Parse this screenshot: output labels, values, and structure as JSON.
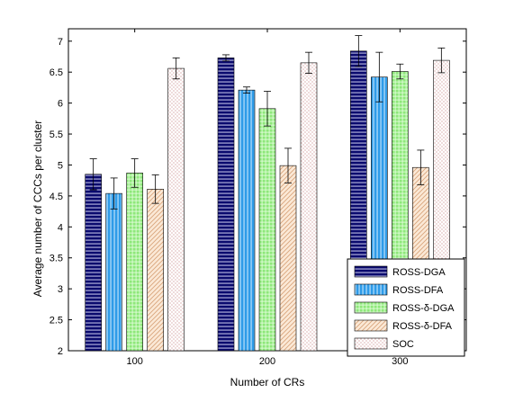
{
  "chart_data": {
    "type": "bar",
    "xlabel": "Number of CRs",
    "ylabel": "Average number of CCCs per cluster",
    "categories": [
      "100",
      "200",
      "300"
    ],
    "ylim": [
      2,
      7.2
    ],
    "yticks": [
      "2",
      "2.5",
      "3",
      "3.5",
      "4",
      "4.5",
      "5",
      "5.5",
      "6",
      "6.5",
      "7"
    ],
    "grid": false,
    "legend_position": "bottom-right",
    "series": [
      {
        "name": "ROSS-DGA",
        "values": [
          4.85,
          6.73,
          6.84
        ],
        "errors": [
          0.25,
          0.05,
          0.25
        ],
        "color": "#0a0a6e",
        "pattern": "hstripe"
      },
      {
        "name": "ROSS-DFA",
        "values": [
          4.54,
          6.21,
          6.42
        ],
        "errors": [
          0.25,
          0.05,
          0.4
        ],
        "color": "#2e9be8",
        "pattern": "vstripe"
      },
      {
        "name": "ROSS-δ-DGA",
        "values": [
          4.87,
          5.91,
          6.51
        ],
        "errors": [
          0.23,
          0.28,
          0.12
        ],
        "color": "#8ee87a",
        "pattern": "grid"
      },
      {
        "name": "ROSS-δ-DFA",
        "values": [
          4.61,
          4.99,
          4.96
        ],
        "errors": [
          0.23,
          0.28,
          0.28
        ],
        "color": "#f2cda8",
        "pattern": "diag"
      },
      {
        "name": "SOC",
        "values": [
          6.56,
          6.65,
          6.69
        ],
        "errors": [
          0.17,
          0.17,
          0.2
        ],
        "color": "#d4a0a0",
        "pattern": "dots"
      }
    ]
  }
}
